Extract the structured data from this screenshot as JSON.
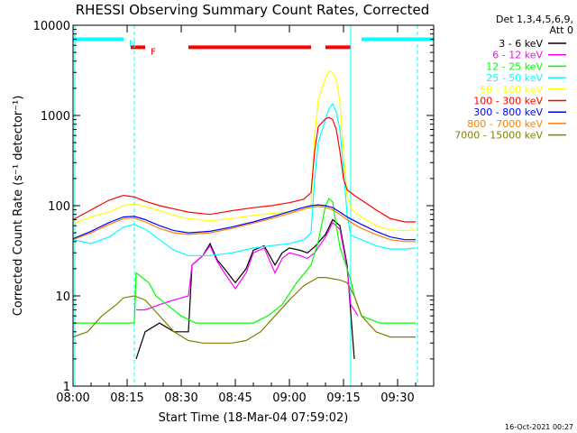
{
  "chart_data": {
    "type": "line",
    "title": "RHESSI Observing Summary Count Rates, Corrected",
    "xlabel": "Start Time (18-Mar-04 07:59:02)",
    "ylabel": "Corrected Count Rate (s⁻¹ detector⁻¹)",
    "yscale": "log",
    "xlim": [
      0,
      100
    ],
    "ylim": [
      1,
      10000
    ],
    "x_unit": "minutes after 08:00",
    "x_ticks": [
      {
        "t": 0,
        "label": "08:00"
      },
      {
        "t": 15,
        "label": "08:15"
      },
      {
        "t": 30,
        "label": "08:30"
      },
      {
        "t": 45,
        "label": "08:45"
      },
      {
        "t": 60,
        "label": "09:00"
      },
      {
        "t": 75,
        "label": "09:15"
      },
      {
        "t": 90,
        "label": "09:30"
      }
    ],
    "y_ticks": [
      {
        "v": 1,
        "label": "1"
      },
      {
        "v": 10,
        "label": "10"
      },
      {
        "v": 100,
        "label": "100"
      },
      {
        "v": 1000,
        "label": "1000"
      },
      {
        "v": 10000,
        "label": "10000"
      }
    ],
    "legend_header": [
      "Det 1,3,4,5,6,9,",
      "Att 0"
    ],
    "timestamp": "16-Oct-2021 00:27",
    "status_bars": [
      {
        "label": "N",
        "color": "#00ffff",
        "start": 0,
        "end": 14,
        "y": 7000
      },
      {
        "label": "",
        "color": "#00ffff",
        "start": 80,
        "end": 100,
        "y": 7000
      },
      {
        "label": "F",
        "color": "#ff0000",
        "start": 16,
        "end": 20,
        "y": 5700
      },
      {
        "label": "",
        "color": "#ff0000",
        "start": 32,
        "end": 66,
        "y": 5700
      },
      {
        "label": "",
        "color": "#ff0000",
        "start": 70,
        "end": 77,
        "y": 5700
      }
    ],
    "night_markers": [
      0.5,
      17,
      77,
      95.5
    ],
    "series": [
      {
        "name": "3 - 6 keV",
        "color": "#000000",
        "t": [
          0,
          17,
          17.5,
          20,
          24,
          28,
          32,
          33,
          36,
          38,
          40,
          42,
          45,
          48,
          50,
          53,
          56,
          58,
          60,
          63,
          65,
          67,
          70,
          72,
          74,
          76,
          78,
          80
        ],
        "v": [
          null,
          null,
          2,
          4,
          5,
          4,
          4,
          22,
          28,
          38,
          25,
          20,
          14,
          20,
          32,
          36,
          22,
          30,
          34,
          32,
          30,
          35,
          48,
          70,
          60,
          22,
          2,
          null
        ]
      },
      {
        "name": "6 - 12 keV",
        "color": "#ff00ff",
        "t": [
          0,
          17,
          17.5,
          20,
          24,
          28,
          32,
          33,
          36,
          38,
          40,
          42,
          45,
          48,
          50,
          53,
          56,
          58,
          60,
          63,
          65,
          67,
          70,
          72,
          74,
          76,
          77,
          78,
          79,
          80
        ],
        "v": [
          null,
          null,
          7,
          7,
          8,
          9,
          10,
          22,
          28,
          36,
          24,
          18,
          12,
          18,
          30,
          34,
          18,
          26,
          30,
          28,
          26,
          30,
          45,
          65,
          55,
          20,
          8,
          7,
          6,
          null
        ]
      },
      {
        "name": "12 - 25 keV",
        "color": "#00ff00",
        "t": [
          0,
          3,
          6,
          9,
          12,
          15,
          17,
          17.5,
          21,
          23,
          26,
          30,
          34,
          38,
          42,
          46,
          50,
          54,
          58,
          62,
          66,
          68,
          70,
          71,
          72,
          73,
          74,
          76,
          77,
          78,
          80,
          85,
          90,
          95
        ],
        "v": [
          5,
          5,
          5,
          5,
          5,
          5,
          5,
          18,
          14,
          10,
          8,
          6,
          5,
          5,
          5,
          5,
          5,
          6,
          8,
          14,
          22,
          40,
          100,
          120,
          110,
          60,
          35,
          20,
          15,
          10,
          6,
          5,
          5,
          5
        ]
      },
      {
        "name": "25 - 50 keV",
        "color": "#00ffff",
        "t": [
          0,
          5,
          10,
          14,
          17,
          20,
          24,
          28,
          32,
          38,
          44,
          50,
          55,
          60,
          64,
          66,
          67,
          68,
          70,
          71,
          72,
          73,
          74,
          75,
          76,
          77,
          78,
          80,
          84,
          88,
          92,
          95
        ],
        "v": [
          42,
          38,
          45,
          58,
          62,
          55,
          42,
          32,
          28,
          28,
          30,
          34,
          36,
          38,
          42,
          50,
          200,
          500,
          900,
          1200,
          1350,
          1100,
          700,
          250,
          80,
          48,
          45,
          42,
          36,
          33,
          33,
          34
        ]
      },
      {
        "name": "50 - 100 keV",
        "color": "#ffff00",
        "t": [
          0,
          5,
          10,
          14,
          17,
          20,
          24,
          28,
          32,
          38,
          44,
          50,
          55,
          60,
          64,
          66,
          67,
          68,
          70,
          71,
          72,
          73,
          74,
          75,
          76,
          77,
          78,
          80,
          84,
          88,
          92,
          95
        ],
        "v": [
          63,
          75,
          85,
          100,
          105,
          98,
          88,
          78,
          72,
          68,
          72,
          78,
          82,
          86,
          90,
          100,
          600,
          1500,
          2600,
          3100,
          3000,
          2500,
          1400,
          400,
          130,
          95,
          85,
          75,
          60,
          54,
          53,
          54
        ]
      },
      {
        "name": "100 - 300 keV",
        "color": "#ff0000",
        "t": [
          0,
          5,
          10,
          14,
          17,
          20,
          24,
          28,
          32,
          38,
          44,
          50,
          55,
          60,
          64,
          66,
          67,
          68,
          70,
          71,
          72,
          73,
          74,
          75,
          76,
          77,
          78,
          80,
          84,
          88,
          92,
          95
        ],
        "v": [
          70,
          90,
          115,
          130,
          125,
          112,
          100,
          92,
          85,
          80,
          88,
          95,
          100,
          108,
          118,
          140,
          400,
          750,
          920,
          950,
          900,
          700,
          400,
          200,
          150,
          140,
          130,
          115,
          90,
          72,
          66,
          66
        ]
      },
      {
        "name": "300 - 800 keV",
        "color": "#0000ff",
        "t": [
          0,
          5,
          10,
          14,
          17,
          20,
          24,
          28,
          32,
          38,
          44,
          50,
          55,
          60,
          64,
          66,
          68,
          70,
          72,
          74,
          76,
          78,
          80,
          84,
          88,
          92,
          95
        ],
        "v": [
          43,
          52,
          65,
          75,
          76,
          70,
          60,
          53,
          50,
          52,
          58,
          66,
          75,
          86,
          96,
          100,
          102,
          100,
          95,
          85,
          75,
          68,
          62,
          52,
          45,
          42,
          42
        ]
      },
      {
        "name": "800 - 7000 keV",
        "color": "#ff8000",
        "t": [
          0,
          5,
          10,
          14,
          17,
          20,
          24,
          28,
          32,
          38,
          44,
          50,
          55,
          60,
          64,
          66,
          68,
          70,
          72,
          74,
          76,
          78,
          80,
          84,
          88,
          92,
          95
        ],
        "v": [
          42,
          50,
          62,
          72,
          73,
          66,
          56,
          50,
          48,
          50,
          56,
          64,
          72,
          82,
          92,
          96,
          98,
          96,
          90,
          80,
          70,
          62,
          56,
          48,
          42,
          40,
          40
        ]
      },
      {
        "name": "7000 - 15000 keV",
        "color": "#808000",
        "t": [
          0,
          4,
          8,
          12,
          14,
          17,
          20,
          24,
          28,
          32,
          36,
          40,
          44,
          48,
          52,
          56,
          60,
          64,
          68,
          70,
          72,
          74,
          76,
          78,
          80,
          84,
          88,
          92,
          95
        ],
        "v": [
          3.5,
          4,
          6,
          8,
          9.5,
          10,
          9,
          6,
          4,
          3.2,
          3,
          3,
          3,
          3.2,
          4,
          6,
          9,
          13,
          16,
          16,
          15.5,
          15,
          14,
          10,
          6,
          4,
          3.5,
          3.5,
          3.5
        ]
      }
    ]
  }
}
